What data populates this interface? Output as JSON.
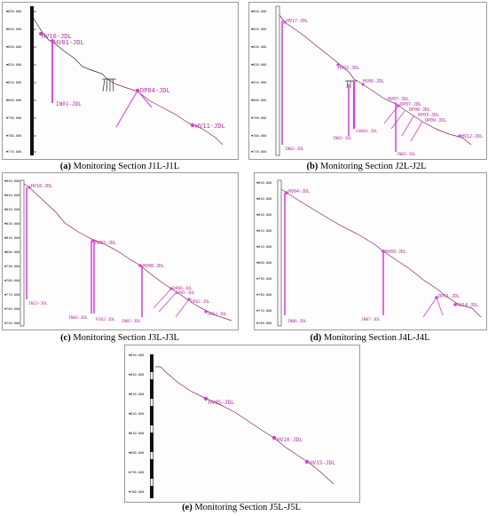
{
  "colors": {
    "profile": "#8a1e4e",
    "instrument": "#d23fd2",
    "label": "#b0309a",
    "pile": "#000000"
  },
  "panels": [
    {
      "id": "a",
      "caption_letter": "(a)",
      "caption_text": "Monitoring Section J1L-J1L",
      "elevations": [
        "▼850.000",
        "▼840.000",
        "▼830.000",
        "▼820.000",
        "▼810.000",
        "▼800.000",
        "▼790.000",
        "▼780.000",
        "▼770.000"
      ],
      "labels": [
        "HV16-JDL",
        "HV01-JDL",
        "IN01-JDL",
        "DP04-JDL",
        "HV11-JDL"
      ]
    },
    {
      "id": "b",
      "caption_letter": "(b)",
      "caption_text": "Monitoring Section J2L-J2L",
      "elevations": [
        "▼850.000",
        "▼840.000",
        "▼830.000",
        "▼820.000",
        "▼810.000",
        "▼800.000",
        "▼790.000",
        "▼780.000",
        "▼770.000"
      ],
      "labels": [
        "HV17-JDL",
        "HV02-JDL",
        "HV06-JDL",
        "HV07-JDL",
        "DP07-JDL",
        "DP08-JDL",
        "DP03-JDL",
        "DP09-JDL",
        "HV12-JDL",
        "IN02-JDL",
        "IN02-JDL",
        "CGK01-JDL",
        "IN03-JDL"
      ]
    },
    {
      "id": "c",
      "caption_letter": "(c)",
      "caption_text": "Monitoring Section J3L-J3L",
      "elevations": [
        "▼850.000",
        "▼840.000",
        "▼830.000",
        "▼820.000",
        "▼810.000",
        "▼800.000",
        "▼790.000",
        "▼780.000",
        "▼770.000",
        "▼760.000",
        "▼750.000"
      ],
      "labels": [
        "HV18-JDL",
        "HV03-JDL",
        "HV08-JDL",
        "DP06-JDL",
        "DP05-JDL",
        "DP02-JDL",
        "HV13-JDL",
        "IN13-JDL",
        "IN04-JDL",
        "P202-JDL",
        "IN05-JDL"
      ]
    },
    {
      "id": "d",
      "caption_letter": "(d)",
      "caption_text": "Monitoring Section J4L-J4L",
      "elevations": [
        "▼850.000",
        "▼840.000",
        "▼830.000",
        "▼820.000",
        "▼810.000",
        "▼800.000",
        "▼790.000",
        "▼780.000",
        "▼770.000",
        "▼760.000"
      ],
      "labels": [
        "HV04-JDL",
        "HV09-JDL",
        "DP01-JDL",
        "HV14-JDL",
        "IN06-JDL",
        "IN07-JDL"
      ]
    },
    {
      "id": "e",
      "caption_letter": "(e)",
      "caption_text": "Monitoring Section J5L-J5L",
      "elevations": [
        "▼850.000",
        "▼840.000",
        "▼830.000",
        "▼820.000",
        "▼810.000",
        "▼800.000",
        "▼790.000",
        "▼780.000"
      ],
      "labels": [
        "HV05-JDL",
        "HV10-JDL",
        "HV15-JDL"
      ]
    }
  ]
}
